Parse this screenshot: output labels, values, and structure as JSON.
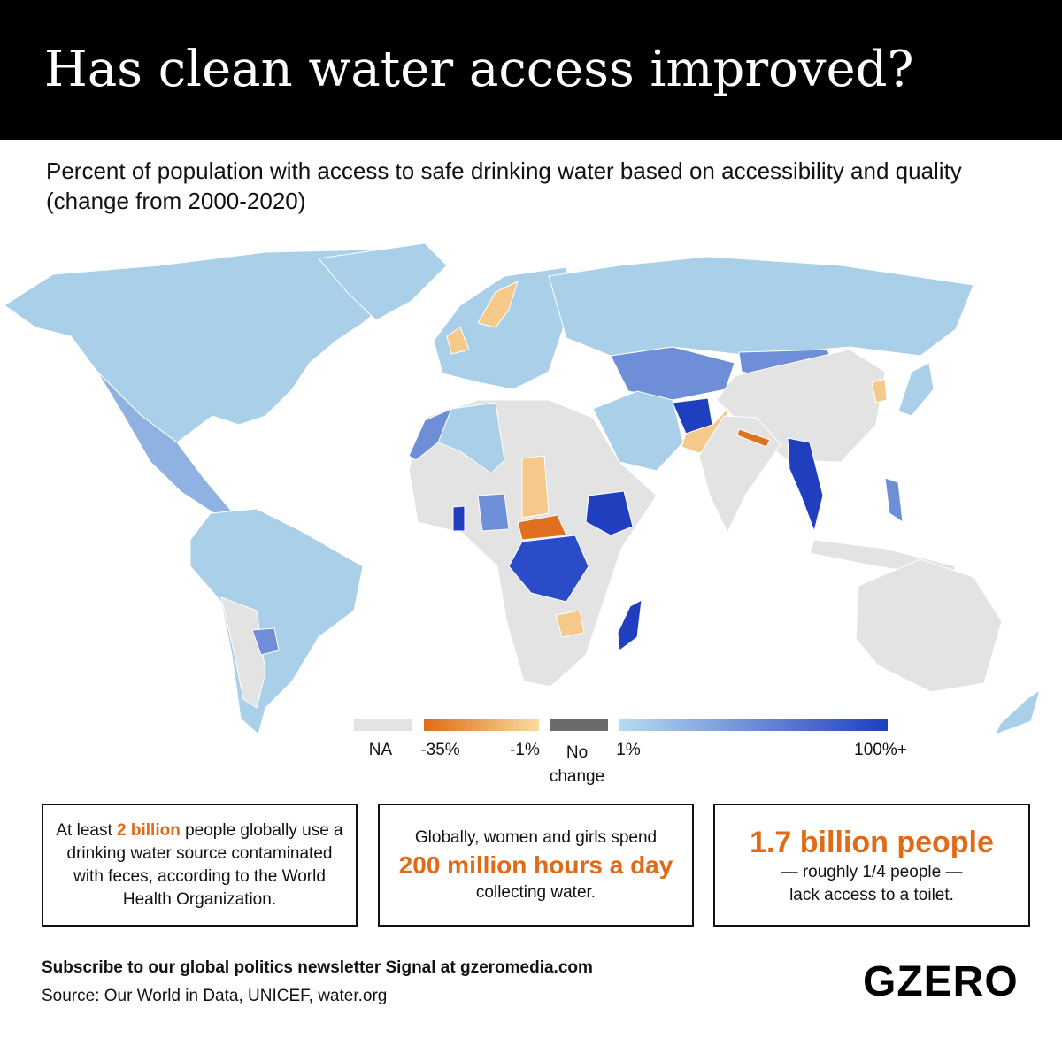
{
  "header": {
    "title": "Has clean water access improved?"
  },
  "subtitle": "Percent of population with access to safe drinking water based on accessibility and quality (change from 2000-2020)",
  "legend": {
    "items": [
      "NA",
      "-35%",
      "-1%",
      "No change",
      "1%",
      "100%+"
    ]
  },
  "stats": [
    {
      "before": "At least",
      "highlight": "2 billion",
      "after": "people globally use a drinking water source contaminated with feces, according to the World Health Organization."
    },
    {
      "before": "Globally, women and girls spend",
      "highlight": "200 million hours a day",
      "after": "collecting water."
    },
    {
      "highlight": "1.7 billion people",
      "after": "— roughly 1/4 people — lack access to a toilet."
    }
  ],
  "footer": {
    "subscribe": "Subscribe to our global politics newsletter Signal at gzeromedia.com",
    "source": "Source: Our World in Data, UNICEF, water.org",
    "logo": "GZERO"
  }
}
